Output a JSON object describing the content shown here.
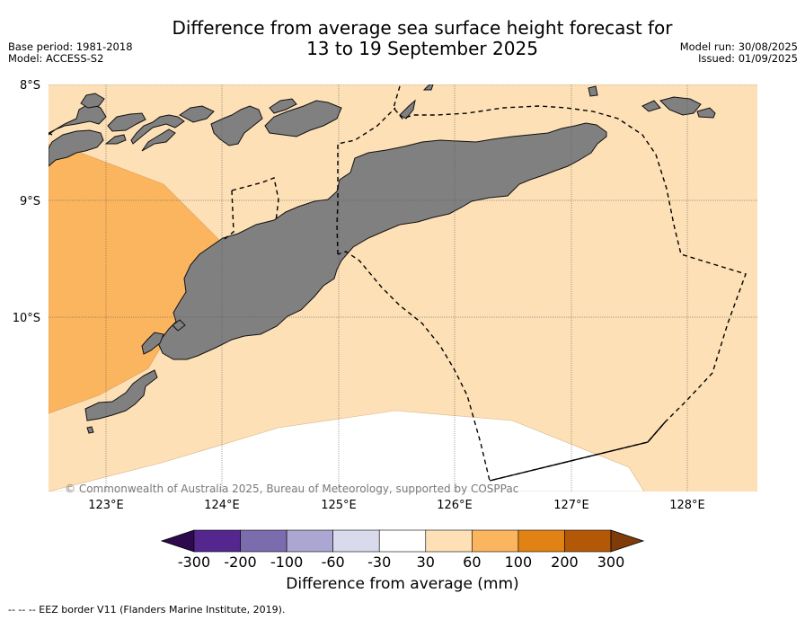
{
  "title": {
    "line1": "Difference from average sea surface height forecast for",
    "line2": "13 to 19 September 2025"
  },
  "meta": {
    "base_period": "Base period: 1981-2018",
    "model": "Model: ACCESS-S2",
    "model_run": "Model run: 30/08/2025",
    "issued": "Issued: 01/09/2025"
  },
  "map": {
    "lat_labels": [
      "8°S",
      "9°S",
      "10°S"
    ],
    "lon_labels": [
      "123°E",
      "124°E",
      "125°E",
      "126°E",
      "127°E",
      "128°E"
    ],
    "copyright": "© Commonwealth of Australia 2025, Bureau of Meteorology, supported by COSPPac",
    "colors": {
      "land": "#808080",
      "band_30_60": "#fde0b6",
      "band_60_100": "#fbb55e",
      "band_neutral": "#ffffff"
    }
  },
  "colorbar": {
    "tick_labels": [
      "-300",
      "-200",
      "-100",
      "-60",
      "-30",
      "30",
      "60",
      "100",
      "200",
      "300"
    ],
    "colors": [
      "#2d0a4e",
      "#54278f",
      "#7b6cae",
      "#aba6d2",
      "#d9daeb",
      "#ffffff",
      "#fde0b6",
      "#fbb55e",
      "#e08214",
      "#b35806",
      "#7f3b08"
    ],
    "label": "Difference from average (mm)"
  },
  "footer": {
    "legend_text": "--  --  -- EEZ border V11 (Flanders Marine Institute, 2019)."
  }
}
